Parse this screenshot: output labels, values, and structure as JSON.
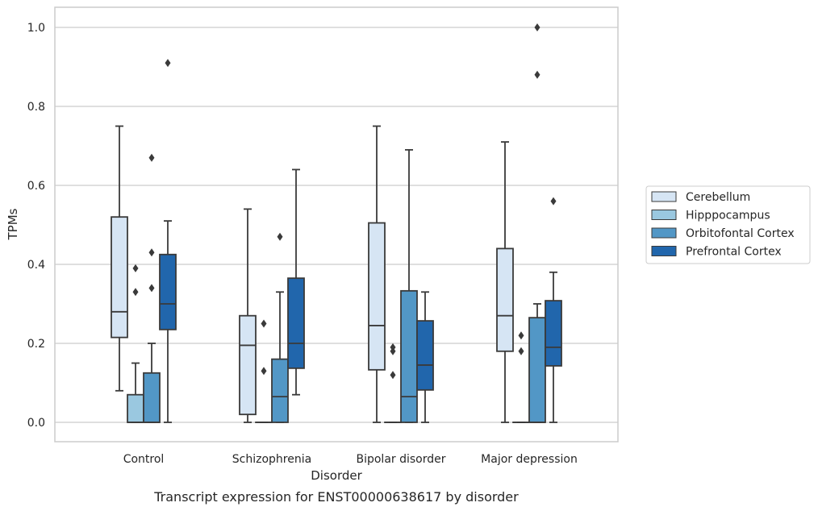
{
  "chart_data": {
    "type": "boxplot",
    "caption": "Transcript expression for ENST00000638617 by disorder",
    "xlabel": "Disorder",
    "ylabel": "TPMs",
    "ylim": [
      -0.048,
      1.05
    ],
    "yticks": [
      "0.0",
      "0.2",
      "0.4",
      "0.6",
      "0.8",
      "1.0"
    ],
    "ytick_values": [
      0,
      0.2,
      0.4,
      0.6,
      0.8,
      1.0
    ],
    "grid": "horizontal",
    "legend_position": "right",
    "categories": [
      "Control",
      "Schizophrenia",
      "Bipolar disorder",
      "Major depression"
    ],
    "series": [
      {
        "name": "Cerebellum",
        "color": "#d6e5f4",
        "boxes": [
          {
            "whislo": 0.08,
            "q1": 0.215,
            "med": 0.28,
            "q3": 0.52,
            "whishi": 0.75,
            "fliers": []
          },
          {
            "whislo": 0.0,
            "q1": 0.02,
            "med": 0.195,
            "q3": 0.27,
            "whishi": 0.54,
            "fliers": []
          },
          {
            "whislo": 0.0,
            "q1": 0.133,
            "med": 0.245,
            "q3": 0.505,
            "whishi": 0.75,
            "fliers": []
          },
          {
            "whislo": 0.0,
            "q1": 0.18,
            "med": 0.27,
            "q3": 0.44,
            "whishi": 0.71,
            "fliers": []
          }
        ]
      },
      {
        "name": "Hipppocampus",
        "color": "#9ac8e0",
        "boxes": [
          {
            "whislo": 0.0,
            "q1": 0.0,
            "med": 0.0,
            "q3": 0.07,
            "whishi": 0.15,
            "fliers": [
              0.33,
              0.39
            ]
          },
          {
            "whislo": 0.0,
            "q1": 0.0,
            "med": 0.0,
            "q3": 0.0,
            "whishi": 0.0,
            "fliers": [
              0.13,
              0.25
            ]
          },
          {
            "whislo": 0.0,
            "q1": 0.0,
            "med": 0.0,
            "q3": 0.0,
            "whishi": 0.0,
            "fliers": [
              0.12,
              0.18,
              0.19
            ]
          },
          {
            "whislo": 0.0,
            "q1": 0.0,
            "med": 0.0,
            "q3": 0.0,
            "whishi": 0.0,
            "fliers": [
              0.18,
              0.22
            ]
          }
        ]
      },
      {
        "name": "Orbitofontal Cortex",
        "color": "#5297c6",
        "boxes": [
          {
            "whislo": 0.0,
            "q1": 0.0,
            "med": 0.0,
            "q3": 0.125,
            "whishi": 0.2,
            "fliers": [
              0.34,
              0.43,
              0.67
            ]
          },
          {
            "whislo": 0.0,
            "q1": 0.0,
            "med": 0.065,
            "q3": 0.16,
            "whishi": 0.33,
            "fliers": [
              0.47
            ]
          },
          {
            "whislo": 0.0,
            "q1": 0.0,
            "med": 0.065,
            "q3": 0.333,
            "whishi": 0.69,
            "fliers": []
          },
          {
            "whislo": 0.0,
            "q1": 0.0,
            "med": 0.0,
            "q3": 0.265,
            "whishi": 0.3,
            "fliers": [
              0.88,
              1.0
            ]
          }
        ]
      },
      {
        "name": "Prefrontal Cortex",
        "color": "#2166ac",
        "boxes": [
          {
            "whislo": 0.0,
            "q1": 0.235,
            "med": 0.3,
            "q3": 0.425,
            "whishi": 0.51,
            "fliers": [
              0.91
            ]
          },
          {
            "whislo": 0.07,
            "q1": 0.137,
            "med": 0.2,
            "q3": 0.365,
            "whishi": 0.64,
            "fliers": []
          },
          {
            "whislo": 0.0,
            "q1": 0.082,
            "med": 0.145,
            "q3": 0.257,
            "whishi": 0.33,
            "fliers": []
          },
          {
            "whislo": 0.0,
            "q1": 0.143,
            "med": 0.19,
            "q3": 0.308,
            "whishi": 0.38,
            "fliers": [
              0.56
            ]
          }
        ]
      }
    ]
  }
}
